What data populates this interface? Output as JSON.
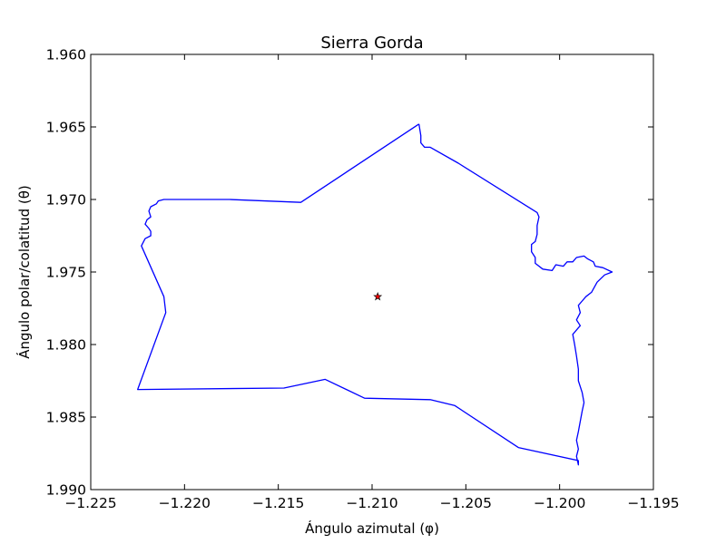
{
  "chart_data": {
    "type": "line",
    "title": "Sierra Gorda",
    "xlabel": "Ángulo azimutal (φ)",
    "ylabel": "Ángulo polar/colatitud (θ)",
    "xlim": [
      -1.225,
      -1.195
    ],
    "ylim": [
      1.99,
      1.96
    ],
    "y_axis_inverted": true,
    "grid": false,
    "x_ticks": [
      -1.225,
      -1.22,
      -1.215,
      -1.21,
      -1.205,
      -1.2,
      -1.195
    ],
    "x_tick_labels": [
      "−1.225",
      "−1.220",
      "−1.215",
      "−1.210",
      "−1.205",
      "−1.200",
      "−1.195"
    ],
    "y_ticks": [
      1.96,
      1.965,
      1.97,
      1.975,
      1.98,
      1.985,
      1.99
    ],
    "y_tick_labels": [
      "1.960",
      "1.965",
      "1.970",
      "1.975",
      "1.980",
      "1.985",
      "1.990"
    ],
    "series": [
      {
        "kind": "line",
        "color": "#0000ff",
        "points": [
          [
            -1.2075,
            1.9648
          ],
          [
            -1.2074,
            1.9656
          ],
          [
            -1.2074,
            1.9661
          ],
          [
            -1.2072,
            1.9664
          ],
          [
            -1.2069,
            1.9664
          ],
          [
            -1.2054,
            1.9675
          ],
          [
            -1.2012,
            1.9709
          ],
          [
            -1.2011,
            1.9712
          ],
          [
            -1.2012,
            1.9718
          ],
          [
            -1.2012,
            1.9724
          ],
          [
            -1.2013,
            1.9729
          ],
          [
            -1.2015,
            1.9731
          ],
          [
            -1.2015,
            1.9736
          ],
          [
            -1.2013,
            1.974
          ],
          [
            -1.2013,
            1.9744
          ],
          [
            -1.2009,
            1.9748
          ],
          [
            -1.2004,
            1.9749
          ],
          [
            -1.2002,
            1.9745
          ],
          [
            -1.1998,
            1.9746
          ],
          [
            -1.1996,
            1.9743
          ],
          [
            -1.1993,
            1.9743
          ],
          [
            -1.1991,
            1.974
          ],
          [
            -1.1987,
            1.9739
          ],
          [
            -1.1985,
            1.9741
          ],
          [
            -1.1982,
            1.9743
          ],
          [
            -1.1981,
            1.9746
          ],
          [
            -1.1977,
            1.9747
          ],
          [
            -1.1972,
            1.975
          ],
          [
            -1.1976,
            1.9752
          ],
          [
            -1.198,
            1.9757
          ],
          [
            -1.1983,
            1.9764
          ],
          [
            -1.1986,
            1.9767
          ],
          [
            -1.1988,
            1.977
          ],
          [
            -1.199,
            1.9773
          ],
          [
            -1.1989,
            1.9778
          ],
          [
            -1.1991,
            1.9783
          ],
          [
            -1.1989,
            1.9787
          ],
          [
            -1.1993,
            1.9793
          ],
          [
            -1.1992,
            1.98
          ],
          [
            -1.1991,
            1.9808
          ],
          [
            -1.199,
            1.9817
          ],
          [
            -1.199,
            1.9825
          ],
          [
            -1.1988,
            1.9833
          ],
          [
            -1.1987,
            1.984
          ],
          [
            -1.1988,
            1.9846
          ],
          [
            -1.1989,
            1.9853
          ],
          [
            -1.199,
            1.986
          ],
          [
            -1.1991,
            1.9866
          ],
          [
            -1.199,
            1.9872
          ],
          [
            -1.1991,
            1.9877
          ],
          [
            -1.199,
            1.9883
          ],
          [
            -1.199,
            1.988
          ],
          [
            -1.2022,
            1.9871
          ],
          [
            -1.2056,
            1.9842
          ],
          [
            -1.2069,
            1.9838
          ],
          [
            -1.2104,
            1.9837
          ],
          [
            -1.2125,
            1.9824
          ],
          [
            -1.2147,
            1.983
          ],
          [
            -1.2225,
            1.9831
          ],
          [
            -1.221,
            1.9778
          ],
          [
            -1.2211,
            1.9767
          ],
          [
            -1.2223,
            1.9732
          ],
          [
            -1.2221,
            1.9727
          ],
          [
            -1.2218,
            1.9725
          ],
          [
            -1.2218,
            1.9722
          ],
          [
            -1.2219,
            1.972
          ],
          [
            -1.2221,
            1.9717
          ],
          [
            -1.222,
            1.9714
          ],
          [
            -1.2218,
            1.9712
          ],
          [
            -1.2219,
            1.9708
          ],
          [
            -1.2218,
            1.9705
          ],
          [
            -1.2215,
            1.9703
          ],
          [
            -1.2214,
            1.9701
          ],
          [
            -1.2211,
            1.97
          ],
          [
            -1.2176,
            1.97
          ],
          [
            -1.2138,
            1.9702
          ],
          [
            -1.2075,
            1.9648
          ]
        ]
      },
      {
        "kind": "marker",
        "marker": "star",
        "color": "#ff0000",
        "points": [
          [
            -1.2097,
            1.9767
          ]
        ]
      }
    ]
  }
}
